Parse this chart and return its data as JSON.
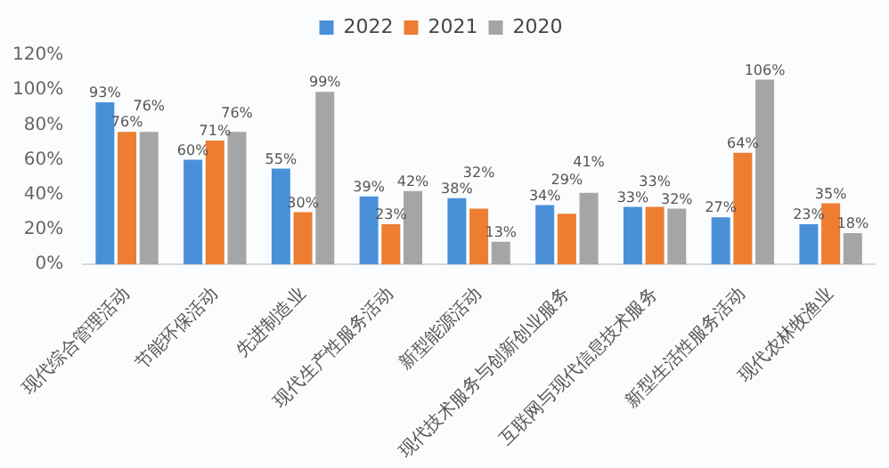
{
  "chart_data": {
    "type": "bar",
    "categories": [
      "现代综合管理活动",
      "节能环保活动",
      "先进制造业",
      "现代生产性服务活动",
      "新型能源活动",
      "现代技术服务与创新创业服务",
      "互联网与现代信息技术服务",
      "新型生活性服务活动",
      "现代农林牧渔业"
    ],
    "series": [
      {
        "name": "2022",
        "color": "#4a90d9",
        "values": [
          93,
          60,
          55,
          39,
          38,
          34,
          33,
          27,
          23
        ],
        "value_labels": [
          "93%",
          "60%",
          "55%",
          "39%",
          "38%",
          "34%",
          "33%",
          "27%",
          "23%"
        ]
      },
      {
        "name": "2021",
        "color": "#ed7d31",
        "values": [
          76,
          71,
          30,
          23,
          32,
          29,
          33,
          64,
          35
        ],
        "value_labels": [
          "76%",
          "71%",
          "30%",
          "23%",
          "32%",
          "29%",
          "33%",
          "64%",
          "35%"
        ]
      },
      {
        "name": "2020",
        "color": "#a5a5a5",
        "values": [
          76,
          76,
          99,
          42,
          13,
          41,
          32,
          106,
          18
        ],
        "value_labels": [
          "76%",
          "76%",
          "99%",
          "42%",
          "13%",
          "41%",
          "32%",
          "106%",
          "18%"
        ]
      }
    ],
    "ylim": [
      0,
      120
    ],
    "yticks": [
      {
        "value": 0,
        "label": "0%"
      },
      {
        "value": 20,
        "label": "20%"
      },
      {
        "value": 40,
        "label": "40%"
      },
      {
        "value": 60,
        "label": "60%"
      },
      {
        "value": 80,
        "label": "80%"
      },
      {
        "value": 100,
        "label": "100%"
      },
      {
        "value": 120,
        "label": "120%"
      }
    ],
    "grid": false,
    "legend": "top"
  }
}
